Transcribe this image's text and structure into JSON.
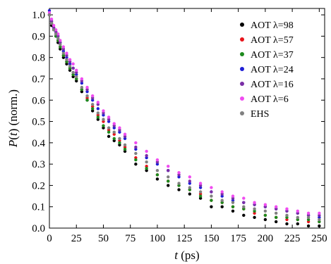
{
  "chart_data": {
    "type": "scatter",
    "title": "",
    "xlabel": {
      "italic": "t",
      "rest": " (ps)"
    },
    "ylabel": {
      "italic": "P",
      "paren": "(",
      "italic2": "t",
      "rest": ") (norm.)"
    },
    "xlim": [
      0,
      255
    ],
    "ylim": [
      0,
      1.03
    ],
    "xticks": [
      0,
      25,
      50,
      75,
      100,
      125,
      150,
      175,
      200,
      225,
      250
    ],
    "yticks": [
      0.0,
      0.1,
      0.2,
      0.3,
      0.4,
      0.5,
      0.6,
      0.7,
      0.8,
      0.9,
      1.0
    ],
    "ytick_labels": [
      "0.0",
      "0.1",
      "0.2",
      "0.3",
      "0.4",
      "0.5",
      "0.6",
      "0.7",
      "0.8",
      "0.9",
      "1.0"
    ],
    "legend_position": "top-right",
    "series": [
      {
        "name": "AOT λ=98",
        "color": "#000000",
        "x": [
          0,
          2,
          4,
          6,
          8,
          10,
          13,
          16,
          19,
          22,
          25,
          30,
          35,
          40,
          45,
          50,
          55,
          60,
          65,
          70,
          80,
          90,
          100,
          110,
          120,
          130,
          140,
          150,
          160,
          170,
          180,
          190,
          200,
          210,
          220,
          230,
          240,
          250
        ],
        "y": [
          1.0,
          0.95,
          0.93,
          0.9,
          0.87,
          0.84,
          0.8,
          0.77,
          0.74,
          0.71,
          0.69,
          0.64,
          0.6,
          0.55,
          0.51,
          0.47,
          0.43,
          0.41,
          0.39,
          0.36,
          0.3,
          0.27,
          0.23,
          0.2,
          0.18,
          0.16,
          0.14,
          0.1,
          0.1,
          0.08,
          0.06,
          0.05,
          0.04,
          0.03,
          0.02,
          0.02,
          0.01,
          0.01
        ]
      },
      {
        "name": "AOT λ=57",
        "color": "#e8141b",
        "x": [
          0,
          2,
          4,
          6,
          8,
          10,
          13,
          16,
          19,
          22,
          25,
          30,
          35,
          40,
          45,
          50,
          55,
          60,
          65,
          70,
          80,
          90,
          100,
          110,
          120,
          130,
          140,
          150,
          160,
          170,
          180,
          190,
          200,
          210,
          220,
          230,
          240,
          250
        ],
        "y": [
          1.0,
          0.96,
          0.93,
          0.91,
          0.88,
          0.85,
          0.81,
          0.78,
          0.75,
          0.72,
          0.7,
          0.65,
          0.61,
          0.57,
          0.53,
          0.5,
          0.46,
          0.44,
          0.41,
          0.38,
          0.33,
          0.29,
          0.25,
          0.22,
          0.2,
          0.18,
          0.16,
          0.13,
          0.12,
          0.1,
          0.09,
          0.07,
          0.06,
          0.05,
          0.04,
          0.04,
          0.03,
          0.03
        ]
      },
      {
        "name": "AOT λ=37",
        "color": "#1d8a1d",
        "x": [
          0,
          2,
          4,
          6,
          8,
          10,
          13,
          16,
          19,
          22,
          25,
          30,
          35,
          40,
          45,
          50,
          55,
          60,
          65,
          70,
          80,
          90,
          100,
          110,
          120,
          130,
          140,
          150,
          160,
          170,
          180,
          190,
          200,
          210,
          220,
          230,
          240,
          250
        ],
        "y": [
          1.0,
          0.96,
          0.93,
          0.9,
          0.88,
          0.85,
          0.81,
          0.78,
          0.75,
          0.72,
          0.7,
          0.65,
          0.6,
          0.56,
          0.52,
          0.48,
          0.45,
          0.42,
          0.4,
          0.37,
          0.32,
          0.28,
          0.25,
          0.22,
          0.2,
          0.18,
          0.15,
          0.13,
          0.12,
          0.1,
          0.09,
          0.08,
          0.06,
          0.05,
          0.05,
          0.04,
          0.04,
          0.03
        ]
      },
      {
        "name": "AOT λ=24",
        "color": "#1f1fd6",
        "x": [
          0,
          2,
          4,
          6,
          8,
          10,
          13,
          16,
          19,
          22,
          25,
          30,
          35,
          40,
          45,
          50,
          55,
          60,
          65,
          70,
          80,
          90,
          100,
          110,
          120,
          130,
          140,
          150,
          160,
          170,
          180,
          190,
          200,
          210,
          220,
          230,
          240,
          250
        ],
        "y": [
          1.02,
          0.97,
          0.94,
          0.92,
          0.9,
          0.87,
          0.83,
          0.8,
          0.77,
          0.75,
          0.72,
          0.68,
          0.64,
          0.6,
          0.56,
          0.53,
          0.5,
          0.47,
          0.45,
          0.42,
          0.37,
          0.33,
          0.3,
          0.27,
          0.24,
          0.21,
          0.19,
          0.17,
          0.15,
          0.13,
          0.12,
          0.11,
          0.1,
          0.09,
          0.08,
          0.07,
          0.06,
          0.05
        ]
      },
      {
        "name": "AOT λ=16",
        "color": "#7a2ea6",
        "x": [
          0,
          2,
          4,
          6,
          8,
          10,
          13,
          16,
          19,
          22,
          25,
          30,
          35,
          40,
          45,
          50,
          55,
          60,
          65,
          70,
          80,
          90,
          100,
          110,
          120,
          130,
          140,
          150,
          160,
          170,
          180,
          190,
          200,
          210,
          220,
          230,
          240,
          250
        ],
        "y": [
          1.0,
          0.97,
          0.94,
          0.92,
          0.9,
          0.87,
          0.84,
          0.81,
          0.78,
          0.75,
          0.73,
          0.69,
          0.65,
          0.61,
          0.58,
          0.54,
          0.51,
          0.48,
          0.46,
          0.43,
          0.38,
          0.34,
          0.31,
          0.27,
          0.25,
          0.22,
          0.2,
          0.17,
          0.16,
          0.14,
          0.12,
          0.11,
          0.1,
          0.09,
          0.08,
          0.07,
          0.06,
          0.06
        ]
      },
      {
        "name": "AOT λ=6",
        "color": "#f04cf0",
        "x": [
          0,
          2,
          4,
          6,
          8,
          10,
          13,
          16,
          19,
          22,
          25,
          30,
          35,
          40,
          45,
          50,
          55,
          60,
          65,
          70,
          80,
          90,
          100,
          110,
          120,
          130,
          140,
          150,
          160,
          170,
          180,
          190,
          200,
          210,
          220,
          230,
          240,
          250
        ],
        "y": [
          1.01,
          0.98,
          0.95,
          0.93,
          0.91,
          0.88,
          0.85,
          0.82,
          0.79,
          0.77,
          0.74,
          0.7,
          0.66,
          0.62,
          0.59,
          0.55,
          0.52,
          0.49,
          0.47,
          0.44,
          0.4,
          0.36,
          0.32,
          0.29,
          0.26,
          0.24,
          0.21,
          0.19,
          0.17,
          0.15,
          0.14,
          0.12,
          0.11,
          0.1,
          0.09,
          0.08,
          0.07,
          0.07
        ]
      },
      {
        "name": "EHS",
        "color": "#808080",
        "x": [
          0,
          2,
          4,
          6,
          8,
          10,
          13,
          16,
          19,
          22,
          25,
          30,
          35,
          40,
          45,
          50,
          55,
          60,
          65,
          70,
          80,
          90,
          100,
          110,
          120,
          130,
          140,
          150,
          160,
          170,
          180,
          190,
          200,
          210,
          220,
          230,
          240,
          250
        ],
        "y": [
          1.0,
          0.96,
          0.93,
          0.91,
          0.89,
          0.86,
          0.82,
          0.79,
          0.76,
          0.73,
          0.71,
          0.66,
          0.62,
          0.58,
          0.54,
          0.51,
          0.47,
          0.45,
          0.42,
          0.39,
          0.35,
          0.31,
          0.27,
          0.24,
          0.21,
          0.19,
          0.17,
          0.15,
          0.13,
          0.12,
          0.1,
          0.09,
          0.08,
          0.07,
          0.06,
          0.05,
          0.05,
          0.04
        ]
      }
    ]
  }
}
